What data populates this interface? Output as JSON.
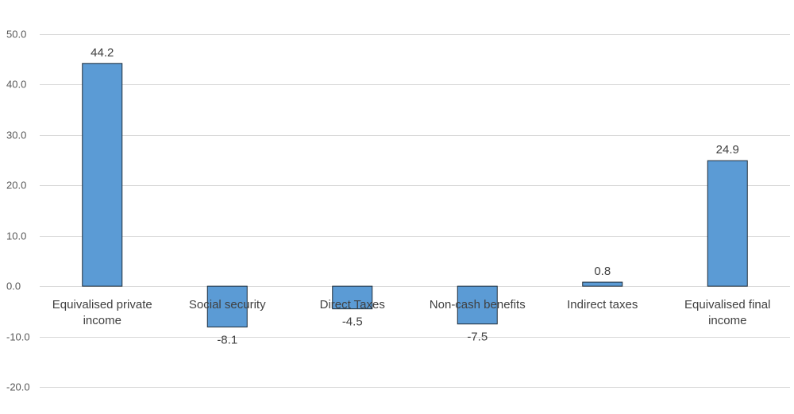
{
  "chart_data": {
    "type": "bar",
    "title": "",
    "xlabel": "",
    "ylabel": "",
    "categories": [
      [
        "Equivalised private",
        "income"
      ],
      [
        "Social security"
      ],
      [
        "Direct Taxes"
      ],
      [
        "Non-cash benefits"
      ],
      [
        "Indirect taxes"
      ],
      [
        "Equivalised final",
        "income"
      ]
    ],
    "values": [
      44.2,
      -8.1,
      -4.5,
      -7.5,
      0.8,
      24.9
    ],
    "value_labels": [
      "44.2",
      "-8.1",
      "-4.5",
      "-7.5",
      "0.8",
      "24.9"
    ],
    "ylim": [
      -20,
      50
    ],
    "yticks": [
      50,
      40,
      30,
      20,
      10,
      0,
      -10,
      -20
    ],
    "ytick_labels": [
      "50.0",
      "40.0",
      "30.0",
      "20.0",
      "10.0",
      "0.0",
      "-10.0",
      "-20.0"
    ],
    "grid": true,
    "legend": "none",
    "bar_color": "#5b9bd5",
    "bar_outline_color": "#1f2d3a",
    "grid_color": "#d9d9d9"
  }
}
